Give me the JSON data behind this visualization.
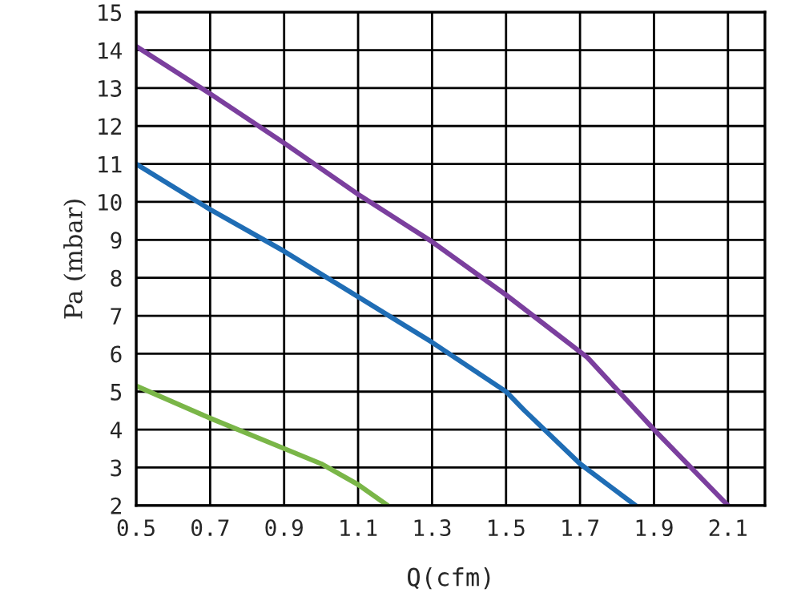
{
  "chart_data": {
    "type": "line",
    "xlabel": "Q(cfm)",
    "ylabel": "Pa (mbar)",
    "xlim": [
      0.5,
      2.2
    ],
    "xticks": [
      0.5,
      0.7,
      0.9,
      1.1,
      1.3,
      1.5,
      1.7,
      1.9,
      2.1
    ],
    "ylim": [
      2,
      15
    ],
    "yticks": [
      2,
      3,
      4,
      5,
      6,
      7,
      8,
      9,
      10,
      11,
      12,
      13,
      14,
      15
    ],
    "grid": true,
    "line_style": "solid",
    "marker": "none",
    "series": [
      {
        "color": "#7b3f9e",
        "x": [
          0.5,
          0.7,
          0.9,
          1.1,
          1.3,
          1.5,
          1.6,
          1.72,
          1.9,
          2.1
        ],
        "values": [
          14.1,
          12.85,
          11.55,
          10.2,
          8.95,
          7.55,
          6.8,
          5.9,
          4.0,
          2.0
        ]
      },
      {
        "color": "#1f6db5",
        "x": [
          0.5,
          0.7,
          0.9,
          1.1,
          1.3,
          1.5,
          1.55,
          1.7,
          1.85
        ],
        "values": [
          11.0,
          9.8,
          8.7,
          7.5,
          6.3,
          5.0,
          4.5,
          3.1,
          2.0
        ]
      },
      {
        "color": "#7ab648",
        "x": [
          0.5,
          0.7,
          0.9,
          1.0,
          1.1,
          1.18
        ],
        "values": [
          5.15,
          4.3,
          3.5,
          3.1,
          2.55,
          2.0
        ]
      }
    ]
  }
}
